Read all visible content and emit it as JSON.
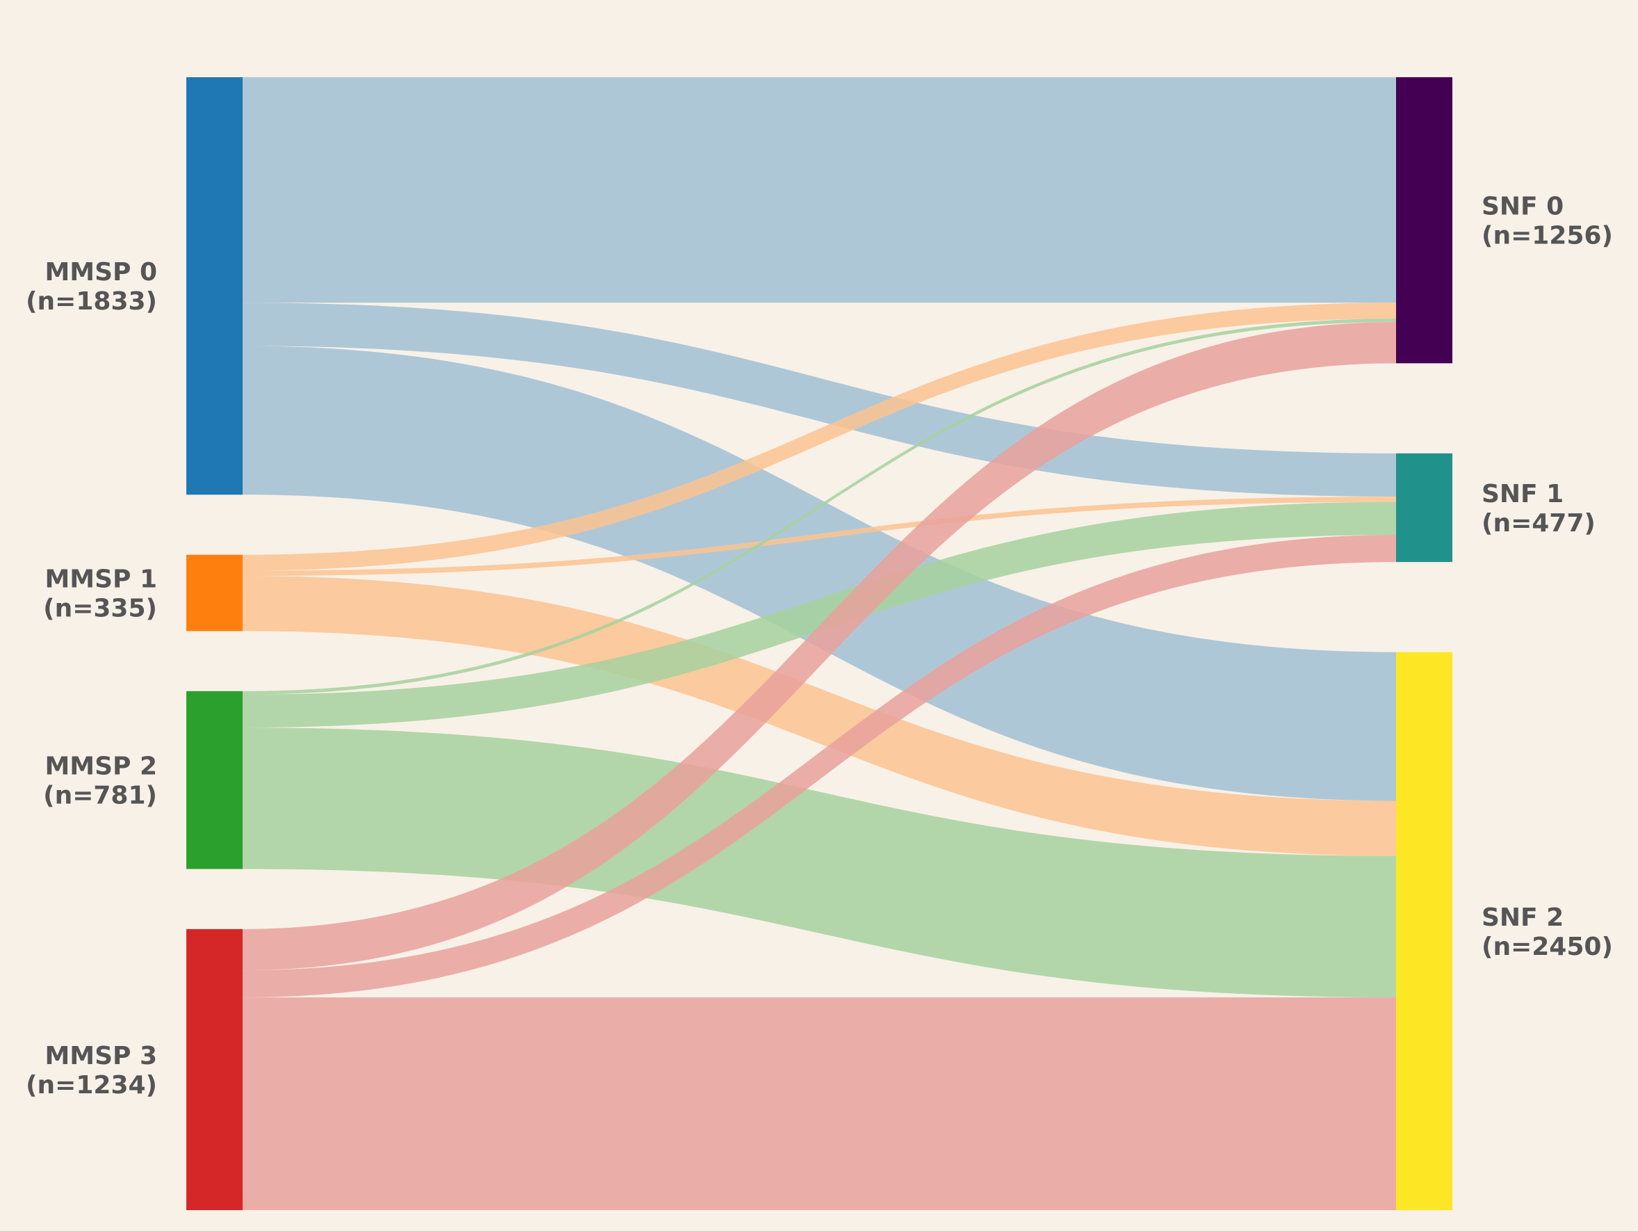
{
  "chart_data": {
    "type": "sankey",
    "title": "",
    "left_nodes": [
      {
        "id": "mmsp0",
        "name": "MMSP 0",
        "count_label": "(n=1833)",
        "value": 1833,
        "color": "#1f77b4",
        "flow_color": "#a1bfd4"
      },
      {
        "id": "mmsp1",
        "name": "MMSP 1",
        "count_label": "(n=335)",
        "value": 335,
        "color": "#ff7f0e",
        "flow_color": "#fbc391"
      },
      {
        "id": "mmsp2",
        "name": "MMSP 2",
        "count_label": "(n=781)",
        "value": 781,
        "color": "#2ca02c",
        "flow_color": "#a6d19d"
      },
      {
        "id": "mmsp3",
        "name": "MMSP 3",
        "count_label": "(n=1234)",
        "value": 1234,
        "color": "#d62728",
        "flow_color": "#e9a19b"
      }
    ],
    "right_nodes": [
      {
        "id": "snf0",
        "name": "SNF 0",
        "count_label": "(n=1256)",
        "value": 1256,
        "color": "#440154"
      },
      {
        "id": "snf1",
        "name": "SNF 1",
        "count_label": "(n=477)",
        "value": 477,
        "color": "#21918c"
      },
      {
        "id": "snf2",
        "name": "SNF 2",
        "count_label": "(n=2450)",
        "value": 2450,
        "color": "#fde725"
      }
    ],
    "flows": [
      {
        "source": "mmsp0",
        "target": "snf0",
        "value": 990
      },
      {
        "source": "mmsp0",
        "target": "snf1",
        "value": 190
      },
      {
        "source": "mmsp0",
        "target": "snf2",
        "value": 653
      },
      {
        "source": "mmsp1",
        "target": "snf0",
        "value": 70
      },
      {
        "source": "mmsp1",
        "target": "snf1",
        "value": 23
      },
      {
        "source": "mmsp1",
        "target": "snf2",
        "value": 242
      },
      {
        "source": "mmsp2",
        "target": "snf0",
        "value": 15
      },
      {
        "source": "mmsp2",
        "target": "snf1",
        "value": 145
      },
      {
        "source": "mmsp2",
        "target": "snf2",
        "value": 621
      },
      {
        "source": "mmsp3",
        "target": "snf0",
        "value": 181
      },
      {
        "source": "mmsp3",
        "target": "snf1",
        "value": 119
      },
      {
        "source": "mmsp3",
        "target": "snf2",
        "value": 934
      }
    ]
  }
}
